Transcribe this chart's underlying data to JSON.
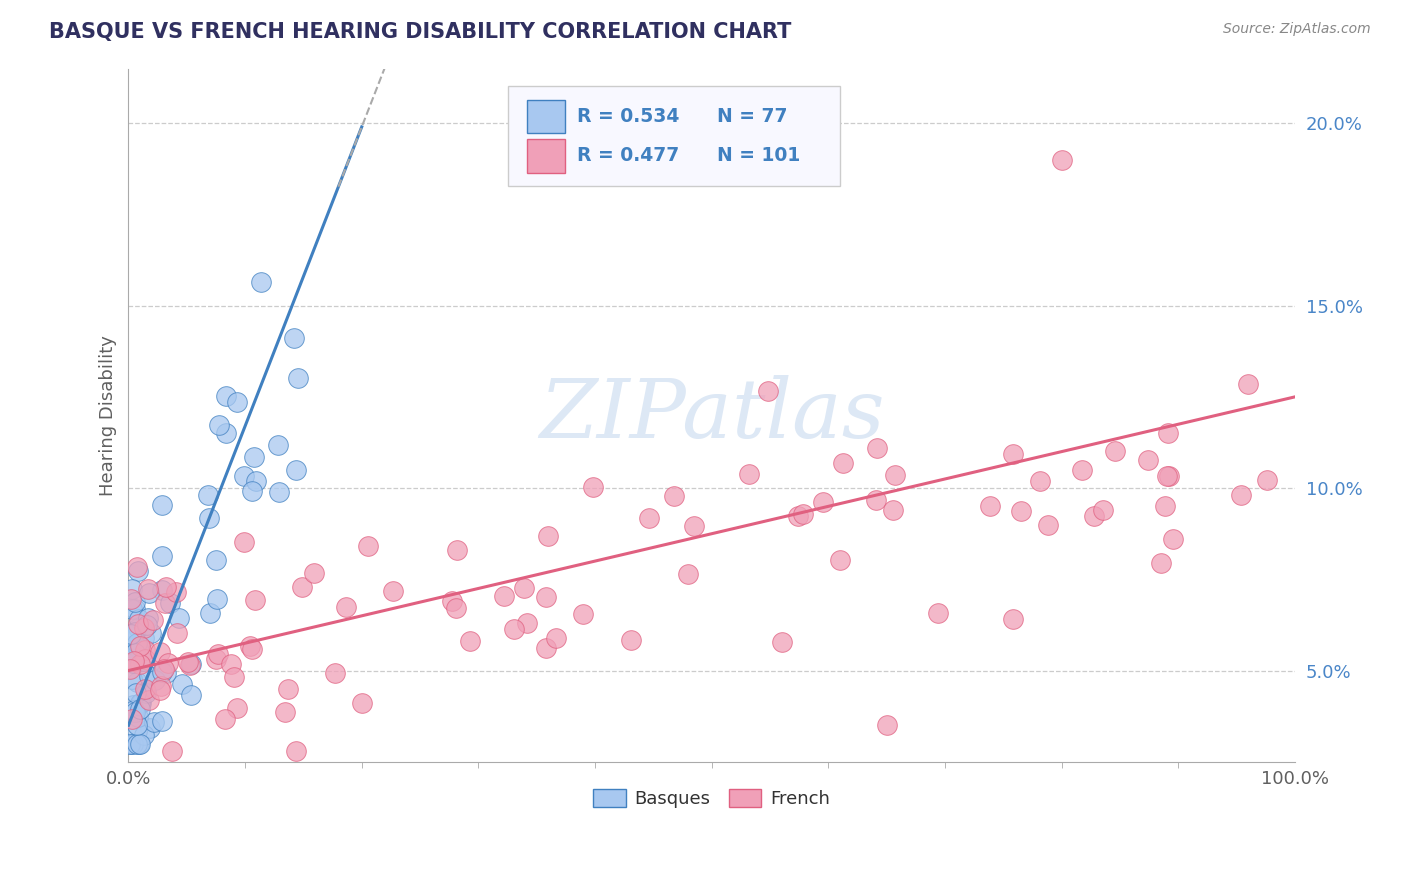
{
  "title": "BASQUE VS FRENCH HEARING DISABILITY CORRELATION CHART",
  "source": "Source: ZipAtlas.com",
  "ylabel": "Hearing Disability",
  "xlim": [
    0,
    100
  ],
  "ylim": [
    2.5,
    21.5
  ],
  "yticks": [
    5,
    10,
    15,
    20
  ],
  "ytick_labels": [
    "5.0%",
    "10.0%",
    "15.0%",
    "20.0%"
  ],
  "basque_R": 0.534,
  "basque_N": 77,
  "french_R": 0.477,
  "french_N": 101,
  "basque_color": "#a8c8f0",
  "french_color": "#f0a0b8",
  "basque_edge_color": "#4080c0",
  "french_edge_color": "#e06080",
  "basque_line_color": "#4080c0",
  "french_line_color": "#e06080",
  "title_color": "#303060",
  "axis_label_color": "#606060",
  "tick_color": "#4a86c8",
  "source_color": "#888888",
  "background_color": "#ffffff",
  "grid_color": "#cccccc",
  "watermark_color": "#dde8f5",
  "legend_border_color": "#cccccc",
  "legend_bg_color": "#f8f8ff"
}
